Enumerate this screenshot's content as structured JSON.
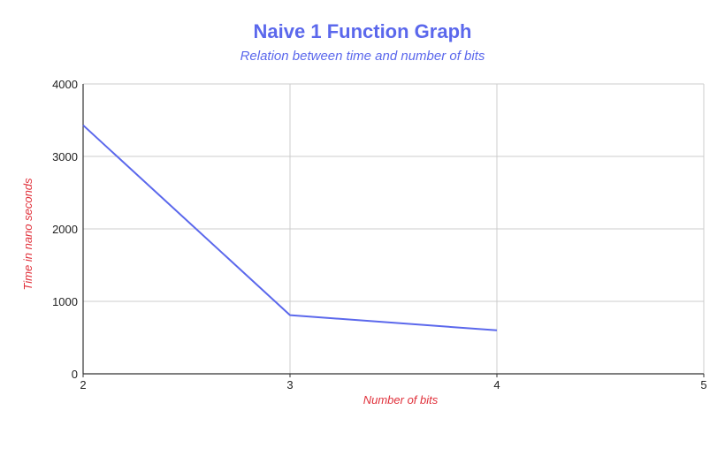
{
  "chart_data": {
    "type": "line",
    "title": "Naive 1 Function Graph",
    "subtitle": "Relation between time and number of bits",
    "xlabel": "Number of bits",
    "ylabel": "Time in nano seconds",
    "xlim": [
      2,
      5
    ],
    "ylim": [
      0,
      4000
    ],
    "x_ticks": [
      2,
      3,
      4,
      5
    ],
    "y_ticks": [
      0,
      1000,
      2000,
      3000,
      4000
    ],
    "grid": true,
    "legend": "none",
    "series": [
      {
        "x": [
          2,
          3,
          4
        ],
        "values": [
          3430,
          810,
          600
        ]
      }
    ]
  },
  "colors": {
    "title": "#5b68ec",
    "line": "#5b68ec",
    "axis_label": "#e0303a",
    "grid": "#cccccc",
    "axis": "#333333"
  }
}
